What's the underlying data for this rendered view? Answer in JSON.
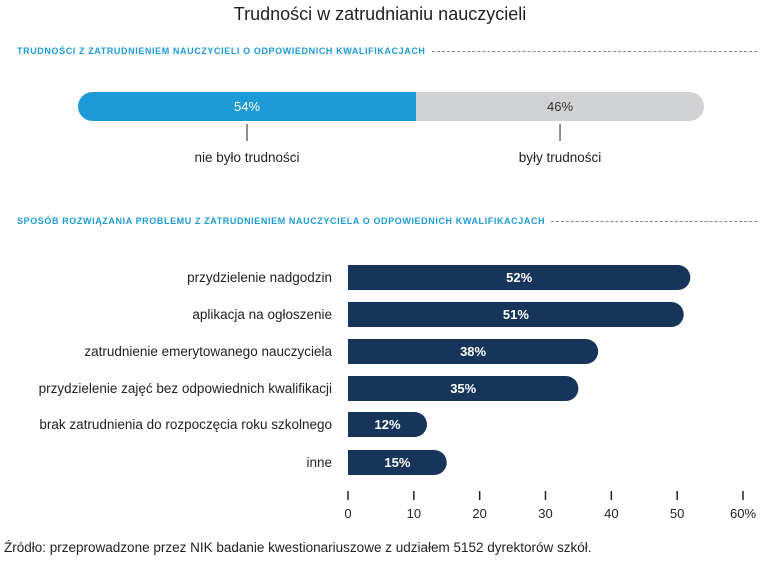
{
  "title": "Trudności w zatrudnianiu nauczycieli",
  "source": "Źródło: przeprowadzone przez NIK badanie kwestionariuszowe z udziałem 5152 dyrektorów szkół.",
  "chart_data": [
    {
      "type": "bar",
      "orientation": "stacked-horizontal",
      "title": "TRUDNOŚCI Z ZATRUDNIENIEM NAUCZYCIELI O ODPOWIEDNICH KWALIFIKACJACH",
      "categories": [
        "nie było trudności",
        "były trudności"
      ],
      "values": [
        54,
        46
      ],
      "labels": [
        "54%",
        "46%"
      ],
      "colors": [
        "#1e9bd7",
        "#d1d2d4"
      ]
    },
    {
      "type": "bar",
      "orientation": "horizontal",
      "title": "SPOSÓB ROZWIĄZANIA PROBLEMU Z ZATRUDNIENIEM NAUCZYCIELA O ODPOWIEDNICH KWALIFIKACJACH",
      "categories": [
        "przydzielenie nadgodzin",
        "aplikacja na ogłoszenie",
        "zatrudnienie emerytowanego nauczyciela",
        "przydzielenie zajęć bez odpowiednich kwalifikacji",
        "brak zatrudnienia do rozpoczęcia roku szkolnego",
        "inne"
      ],
      "values": [
        52,
        51,
        38,
        35,
        12,
        15
      ],
      "labels": [
        "52%",
        "51%",
        "38%",
        "35%",
        "12%",
        "15%"
      ],
      "xlim": [
        0,
        60
      ],
      "xticks": [
        "0",
        "10",
        "20",
        "30",
        "40",
        "50",
        "60%"
      ],
      "color": "#17355a"
    }
  ]
}
